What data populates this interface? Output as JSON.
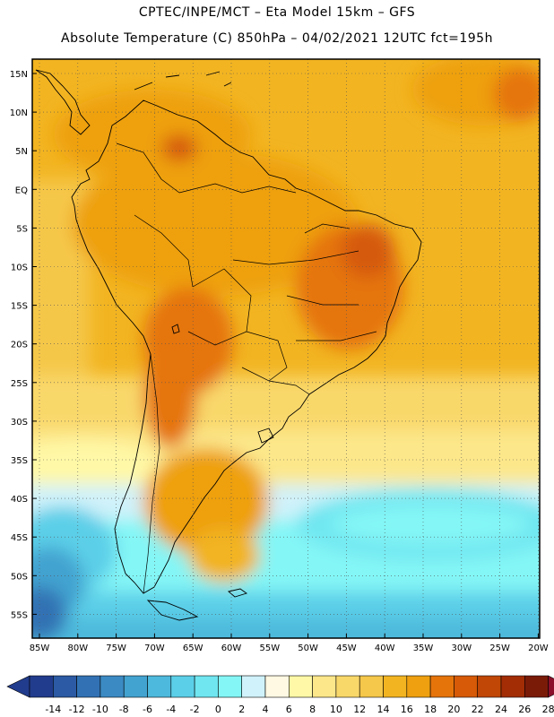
{
  "header": {
    "line1": "CPTEC/INPE/MCT –  Eta Model 15km – GFS",
    "line2": "Absolute Temperature (C) 850hPa – 04/02/2021 12UTC fct=195h"
  },
  "map": {
    "region": "South America",
    "grid": "dotted",
    "lat_labels": [
      "15N",
      "10N",
      "5N",
      "EQ",
      "5S",
      "10S",
      "15S",
      "20S",
      "25S",
      "30S",
      "35S",
      "40S",
      "45S",
      "50S",
      "55S"
    ],
    "lon_labels": [
      "85W",
      "80W",
      "75W",
      "70W",
      "65W",
      "60W",
      "55W",
      "50W",
      "45W",
      "40W",
      "35W",
      "30W",
      "25W",
      "20W"
    ]
  },
  "legend": {
    "ticks": [
      "-14",
      "-12",
      "-10",
      "-8",
      "-6",
      "-4",
      "-2",
      "0",
      "2",
      "4",
      "6",
      "8",
      "10",
      "12",
      "14",
      "16",
      "18",
      "20",
      "22",
      "24",
      "26",
      "28"
    ],
    "colors": [
      "#213c8c",
      "#2c5aa4",
      "#3272b4",
      "#3b8ac4",
      "#43a3d0",
      "#4db9dc",
      "#5ccfe8",
      "#6fe6f0",
      "#84f6f6",
      "#d0f2fa",
      "#fff8e2",
      "#fff8a6",
      "#fce78a",
      "#f9d86a",
      "#f5c74a",
      "#f2b421",
      "#eea010",
      "#e5740b",
      "#d65a07",
      "#c04705",
      "#a32d05",
      "#7a1b08"
    ],
    "under_color": "#213c8c",
    "over_color": "#8b0f2a"
  }
}
